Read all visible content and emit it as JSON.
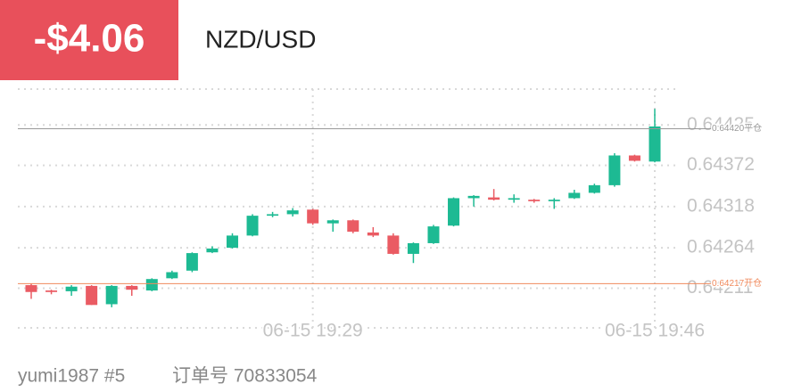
{
  "header": {
    "pnl": "-$4.06",
    "symbol": "NZD/USD"
  },
  "footer": {
    "user": "yumi1987 #5",
    "order": "订单号 70833054"
  },
  "chart_data": {
    "type": "candlestick",
    "categories": [
      null,
      null,
      null,
      null,
      null,
      null,
      null,
      null,
      null,
      null,
      null,
      null,
      null,
      null,
      "06-15 19:29",
      null,
      null,
      null,
      null,
      null,
      null,
      null,
      null,
      null,
      null,
      null,
      null,
      null,
      null,
      null,
      null,
      "06-15 19:46"
    ],
    "series": [
      {
        "up_color": "#1dba93",
        "down_color": "#ea5b63",
        "open": [
          0.64215,
          0.64208,
          0.64207,
          0.64214,
          0.6419,
          0.64214,
          0.64208,
          0.64224,
          0.64234,
          0.64258,
          0.64264,
          0.6428,
          0.64306,
          0.64308,
          0.64314,
          0.64296,
          0.643,
          0.64284,
          0.6428,
          0.64256,
          0.6427,
          0.64293,
          0.64329,
          0.6433,
          0.64327,
          0.64327,
          0.64325,
          0.64329,
          0.64336,
          0.64346,
          0.64385,
          0.64377
        ],
        "high": [
          0.64217,
          0.64209,
          0.64215,
          0.64215,
          0.64215,
          0.64215,
          0.64224,
          0.64234,
          0.64258,
          0.64266,
          0.64283,
          0.64308,
          0.64311,
          0.64316,
          0.64315,
          0.64301,
          0.64301,
          0.64291,
          0.64283,
          0.64271,
          0.64294,
          0.6433,
          0.64333,
          0.64341,
          0.64334,
          0.64328,
          0.64329,
          0.6434,
          0.64348,
          0.64388,
          0.64386,
          0.64446
        ],
        "low": [
          0.64197,
          0.64203,
          0.64201,
          0.64189,
          0.64186,
          0.64201,
          0.64207,
          0.64223,
          0.64232,
          0.64257,
          0.64263,
          0.64279,
          0.64304,
          0.64305,
          0.64294,
          0.64285,
          0.64283,
          0.64278,
          0.64255,
          0.64244,
          0.64269,
          0.64292,
          0.64318,
          0.64326,
          0.64323,
          0.64323,
          0.64315,
          0.64328,
          0.64335,
          0.64344,
          0.64377,
          0.64376
        ],
        "close": [
          0.64206,
          0.64206,
          0.64213,
          0.64189,
          0.64214,
          0.64209,
          0.64223,
          0.64232,
          0.64257,
          0.64263,
          0.6428,
          0.64306,
          0.64308,
          0.64313,
          0.64296,
          0.643,
          0.64285,
          0.6428,
          0.64256,
          0.6427,
          0.64292,
          0.64329,
          0.64332,
          0.64327,
          0.64329,
          0.64325,
          0.64327,
          0.64336,
          0.64346,
          0.64385,
          0.64378,
          0.64423
        ]
      }
    ],
    "ylim": [
      0.64159,
      0.64472
    ],
    "yticks": [
      0.64425,
      0.64372,
      0.64318,
      0.64264,
      0.64211
    ],
    "grid": true,
    "reference_lines": [
      {
        "value": 0.6442,
        "label": "0.64420平仓",
        "color": "#999999"
      },
      {
        "value": 0.64217,
        "label": "0.64217开仓",
        "color": "#f08a5d"
      }
    ]
  }
}
